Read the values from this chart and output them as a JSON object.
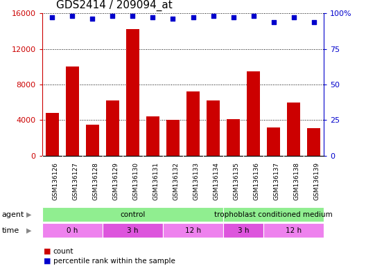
{
  "title": "GDS2414 / 209094_at",
  "samples": [
    "GSM136126",
    "GSM136127",
    "GSM136128",
    "GSM136129",
    "GSM136130",
    "GSM136131",
    "GSM136132",
    "GSM136133",
    "GSM136134",
    "GSM136135",
    "GSM136136",
    "GSM136137",
    "GSM136138",
    "GSM136139"
  ],
  "counts": [
    4800,
    10000,
    3500,
    6200,
    14200,
    4400,
    4000,
    7200,
    6200,
    4100,
    9500,
    3200,
    6000,
    3100
  ],
  "percentile_ranks": [
    97,
    98,
    96,
    98,
    98,
    97,
    96,
    97,
    98,
    97,
    98,
    94,
    97,
    94
  ],
  "bar_color": "#cc0000",
  "dot_color": "#0000cc",
  "ylim_left": [
    0,
    16000
  ],
  "ylim_right": [
    0,
    100
  ],
  "yticks_left": [
    0,
    4000,
    8000,
    12000,
    16000
  ],
  "yticks_right": [
    0,
    25,
    50,
    75,
    100
  ],
  "agent_groups": [
    {
      "label": "control",
      "start": 0,
      "end": 9
    },
    {
      "label": "trophoblast conditioned medium",
      "start": 9,
      "end": 14
    }
  ],
  "time_groups": [
    {
      "label": "0 h",
      "start": 0,
      "end": 3
    },
    {
      "label": "3 h",
      "start": 3,
      "end": 6
    },
    {
      "label": "12 h",
      "start": 6,
      "end": 9
    },
    {
      "label": "3 h",
      "start": 9,
      "end": 11
    },
    {
      "label": "12 h",
      "start": 11,
      "end": 14
    }
  ],
  "agent_label": "agent",
  "time_label": "time",
  "legend_count_label": "count",
  "legend_percentile_label": "percentile rank within the sample",
  "title_fontsize": 11,
  "axis_label_color_left": "#cc0000",
  "axis_label_color_right": "#0000cc",
  "bg_color": "#ffffff",
  "tick_area_bg": "#cccccc",
  "agent_color": "#90ee90",
  "time_color_alt1": "#ee82ee",
  "time_color_alt2": "#dd55dd"
}
